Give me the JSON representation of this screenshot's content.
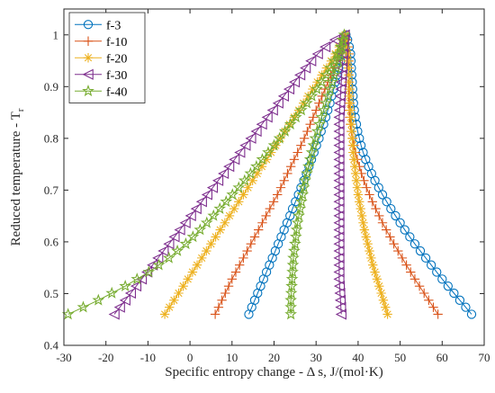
{
  "chart_data": {
    "type": "line",
    "title": "",
    "xlabel": "Specific entropy change - Δ s, J/(mol·K)",
    "ylabel_main": "Reduced temperature - T",
    "ylabel_sub": "r",
    "xlim": [
      -30,
      70
    ],
    "ylim": [
      0.4,
      1.05
    ],
    "x_ticks": [
      -30,
      -20,
      -10,
      0,
      10,
      20,
      30,
      40,
      50,
      60,
      70
    ],
    "y_ticks": [
      0.4,
      0.5,
      0.6,
      0.7,
      0.8,
      0.9,
      1.0
    ],
    "x_tick_labels": [
      "-30",
      "-20",
      "-10",
      "0",
      "10",
      "20",
      "30",
      "40",
      "50",
      "60",
      "70"
    ],
    "y_tick_labels": [
      "0.4",
      "0.5",
      "0.6",
      "0.7",
      "0.8",
      "0.9",
      "1"
    ],
    "grid": false,
    "legend_position": "top-left",
    "y_values": [
      0.46,
      0.4736,
      0.4872,
      0.5008,
      0.5144,
      0.528,
      0.5416,
      0.5552,
      0.5688,
      0.5824,
      0.596,
      0.6096,
      0.6232,
      0.6368,
      0.6504,
      0.664,
      0.6776,
      0.6912,
      0.7048,
      0.7184,
      0.732,
      0.7456,
      0.7592,
      0.7728,
      0.7864,
      0.8,
      0.8136,
      0.8272,
      0.8408,
      0.8544,
      0.868,
      0.8816,
      0.8952,
      0.9088,
      0.9224,
      0.936,
      0.9496,
      0.9632,
      0.9768,
      0.9904,
      1.0
    ],
    "series": [
      {
        "name": "f-3",
        "color": "#0072BD",
        "marker": "circle",
        "left_x": [
          14.0,
          14.7,
          15.4,
          16.1,
          16.8,
          17.5,
          18.2,
          18.9,
          19.6,
          20.3,
          21.0,
          21.7,
          22.4,
          23.1,
          23.8,
          24.4,
          25.1,
          25.8,
          26.4,
          27.1,
          27.7,
          28.3,
          28.9,
          29.5,
          30.1,
          30.7,
          31.2,
          31.8,
          32.3,
          32.8,
          33.3,
          33.7,
          34.2,
          34.6,
          35.0,
          35.4,
          35.8,
          36.1,
          36.5,
          36.8,
          37.1
        ],
        "right_x": [
          67.0,
          65.6,
          64.2,
          62.8,
          61.4,
          60.0,
          58.7,
          57.4,
          56.1,
          54.8,
          53.5,
          52.3,
          51.1,
          50.0,
          48.9,
          47.8,
          46.8,
          45.8,
          44.9,
          44.0,
          43.2,
          42.5,
          41.8,
          41.2,
          40.7,
          40.3,
          39.9,
          39.6,
          39.3,
          39.1,
          38.9,
          38.8,
          38.7,
          38.6,
          38.5,
          38.4,
          38.3,
          38.2,
          37.9,
          37.5,
          37.1
        ]
      },
      {
        "name": "f-10",
        "color": "#D95319",
        "marker": "plus",
        "left_x": [
          6.0,
          6.8,
          7.6,
          8.4,
          9.2,
          10.0,
          10.9,
          11.8,
          12.7,
          13.6,
          14.5,
          15.4,
          16.3,
          17.2,
          18.1,
          19.0,
          19.9,
          20.8,
          21.6,
          22.4,
          23.2,
          24.0,
          24.8,
          25.6,
          26.4,
          27.2,
          27.9,
          28.6,
          29.3,
          30.0,
          30.7,
          31.4,
          32.1,
          32.8,
          33.5,
          34.2,
          34.9,
          35.6,
          36.2,
          36.6,
          37.0
        ],
        "right_x": [
          59.0,
          57.9,
          56.8,
          55.7,
          54.6,
          53.5,
          52.5,
          51.5,
          50.5,
          49.5,
          48.5,
          47.6,
          46.7,
          45.8,
          45.0,
          44.2,
          43.4,
          42.7,
          42.0,
          41.4,
          40.8,
          40.3,
          39.8,
          39.4,
          39.0,
          38.7,
          38.4,
          38.2,
          38.0,
          37.9,
          37.8,
          37.8,
          37.8,
          37.8,
          37.8,
          37.8,
          37.8,
          37.8,
          37.6,
          37.3,
          37.0
        ]
      },
      {
        "name": "f-20",
        "color": "#EDB120",
        "marker": "asterisk",
        "left_x": [
          -6.0,
          -4.9,
          -3.8,
          -2.7,
          -1.6,
          -0.5,
          0.6,
          1.7,
          2.8,
          3.9,
          5.0,
          6.1,
          7.2,
          8.3,
          9.4,
          10.5,
          11.6,
          12.7,
          13.8,
          14.9,
          16.0,
          17.1,
          18.2,
          19.3,
          20.4,
          21.5,
          22.6,
          23.7,
          24.8,
          25.9,
          27.0,
          28.1,
          29.2,
          30.3,
          31.4,
          32.5,
          33.6,
          34.6,
          35.5,
          36.3,
          36.9
        ],
        "right_x": [
          47.0,
          46.5,
          46.0,
          45.5,
          45.0,
          44.5,
          44.0,
          43.5,
          43.1,
          42.7,
          42.3,
          41.9,
          41.5,
          41.2,
          40.9,
          40.6,
          40.3,
          40.0,
          39.8,
          39.6,
          39.4,
          39.2,
          39.0,
          38.8,
          38.7,
          38.6,
          38.5,
          38.4,
          38.3,
          38.2,
          38.1,
          38.0,
          38.0,
          37.9,
          37.8,
          37.7,
          37.6,
          37.5,
          37.3,
          37.1,
          36.9
        ]
      },
      {
        "name": "f-30",
        "color": "#7E2F8E",
        "marker": "triangle-left",
        "left_x": [
          -18.0,
          -16.7,
          -15.4,
          -14.1,
          -12.8,
          -11.5,
          -10.2,
          -8.9,
          -7.6,
          -6.3,
          -5.0,
          -3.7,
          -2.4,
          -1.1,
          0.2,
          1.5,
          2.8,
          4.1,
          5.4,
          6.7,
          8.0,
          9.3,
          10.6,
          11.9,
          13.2,
          14.5,
          15.8,
          17.1,
          18.4,
          19.7,
          21.0,
          22.3,
          23.6,
          24.9,
          26.2,
          27.5,
          28.8,
          30.4,
          32.2,
          34.5,
          36.8
        ],
        "right_x": [
          36.0,
          35.9,
          35.8,
          35.7,
          35.6,
          35.5,
          35.5,
          35.5,
          35.5,
          35.5,
          35.5,
          35.5,
          35.5,
          35.5,
          35.5,
          35.5,
          35.5,
          35.5,
          35.5,
          35.5,
          35.5,
          35.5,
          35.5,
          35.5,
          35.5,
          35.5,
          35.5,
          35.5,
          35.5,
          35.6,
          35.7,
          35.8,
          35.9,
          36.0,
          36.1,
          36.2,
          36.3,
          36.4,
          36.5,
          36.6,
          36.8
        ]
      },
      {
        "name": "f-40",
        "color": "#77AC30",
        "marker": "pentagram",
        "left_x": [
          -29.0,
          -25.4,
          -21.8,
          -18.6,
          -15.4,
          -12.6,
          -9.8,
          -7.4,
          -5.0,
          -3.0,
          -1.0,
          0.7,
          2.4,
          4.0,
          5.6,
          7.1,
          8.6,
          10.1,
          11.6,
          13.0,
          14.4,
          15.8,
          17.2,
          18.6,
          20.0,
          21.3,
          22.6,
          23.9,
          25.2,
          26.5,
          27.8,
          29.0,
          30.2,
          31.3,
          32.4,
          33.4,
          34.3,
          35.1,
          35.8,
          36.3,
          36.7
        ],
        "right_x": [
          24.0,
          24.0,
          24.0,
          24.1,
          24.2,
          24.3,
          24.4,
          24.5,
          24.6,
          24.8,
          25.0,
          25.2,
          25.4,
          25.6,
          25.9,
          26.2,
          26.5,
          26.8,
          27.1,
          27.4,
          27.8,
          28.2,
          28.6,
          29.0,
          29.4,
          29.8,
          30.3,
          30.8,
          31.3,
          31.8,
          32.3,
          32.8,
          33.3,
          33.8,
          34.3,
          34.8,
          35.3,
          35.7,
          36.1,
          36.4,
          36.7
        ]
      }
    ]
  }
}
